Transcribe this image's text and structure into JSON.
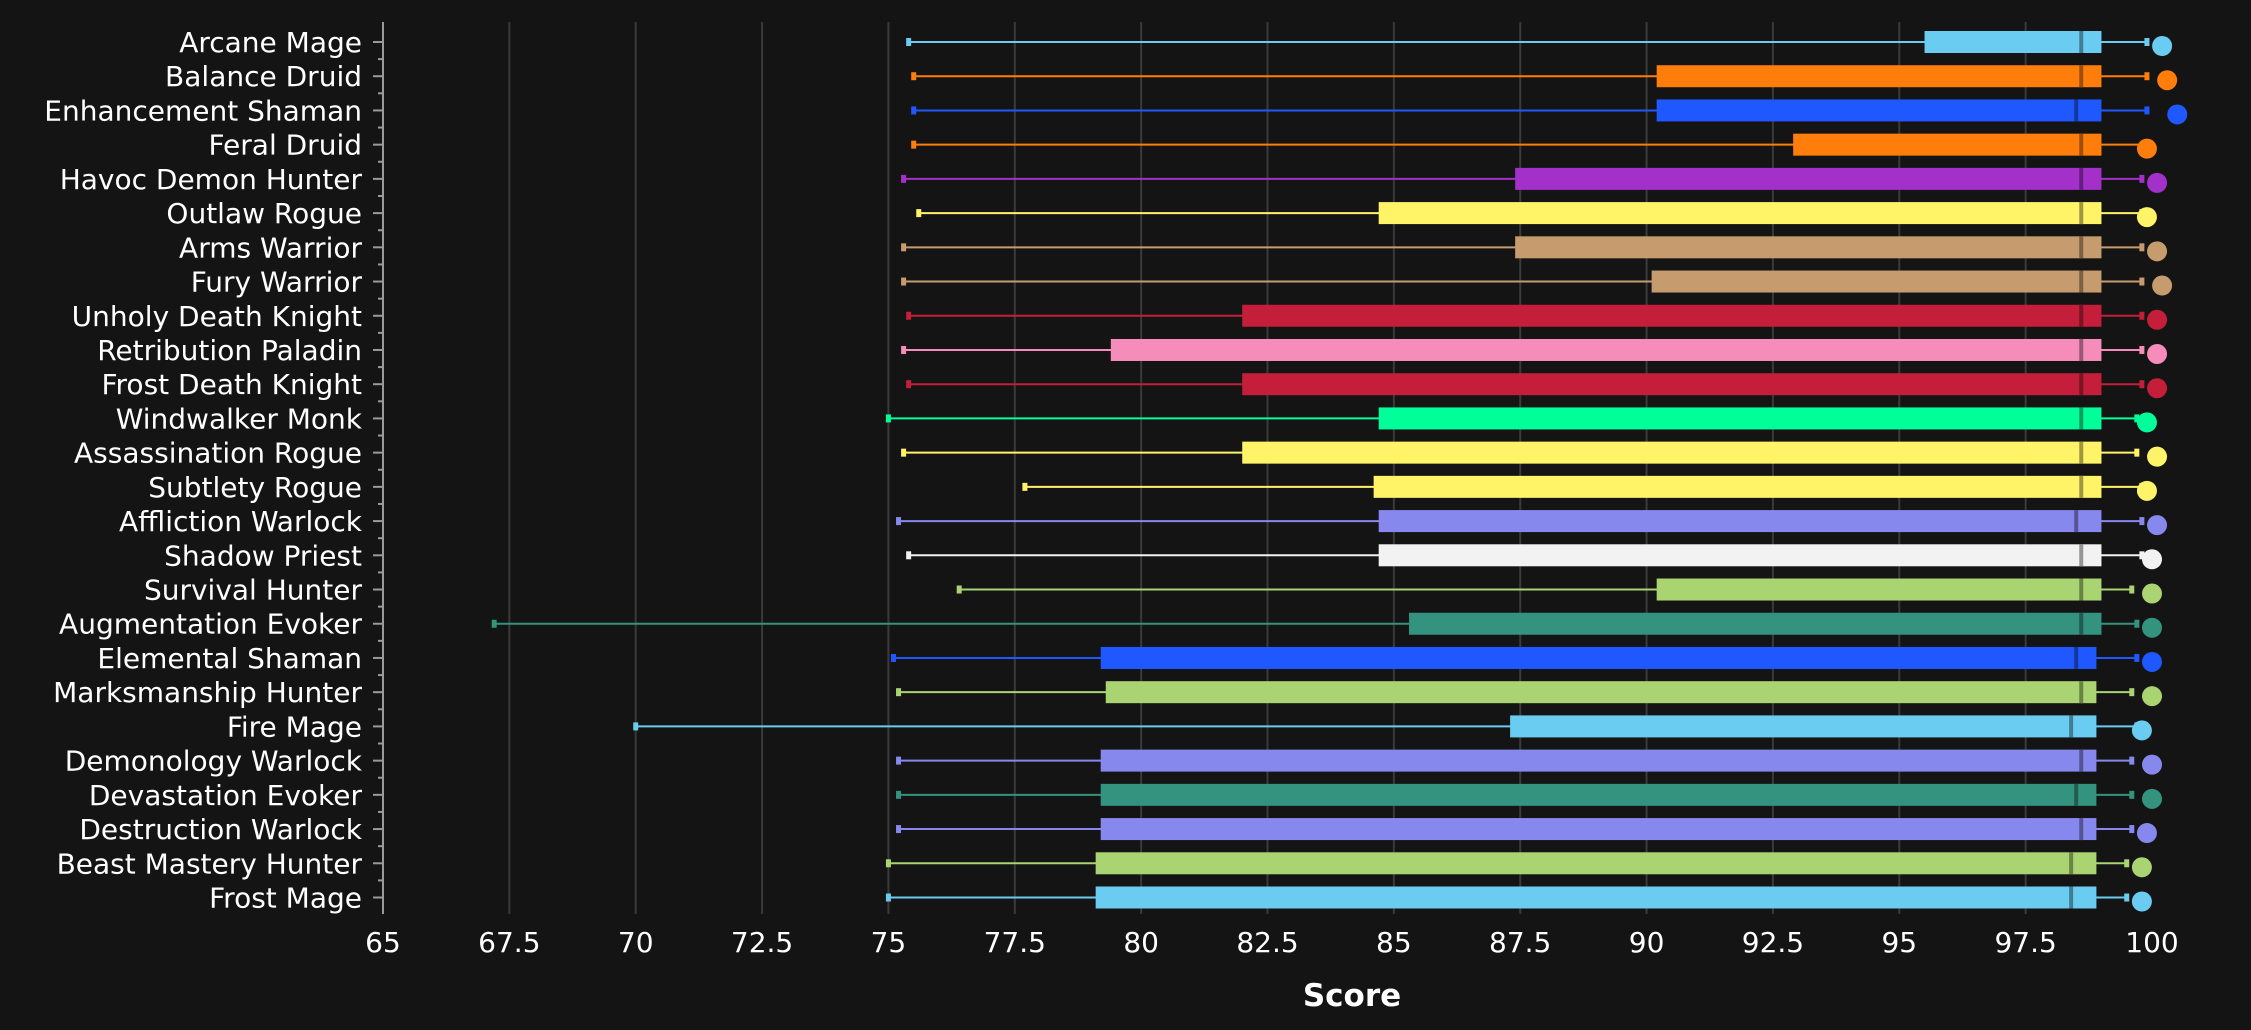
{
  "chart_data": {
    "type": "boxplot",
    "title": "",
    "xlabel": "Score",
    "ylabel": "",
    "xlim": [
      65,
      100
    ],
    "xticks": [
      "65",
      "67.5",
      "70",
      "72.5",
      "75",
      "77.5",
      "80",
      "82.5",
      "85",
      "87.5",
      "90",
      "92.5",
      "95",
      "97.5",
      "100"
    ],
    "grid": "vertical",
    "series": [
      {
        "name": "Arcane Mage",
        "color": "#69CCF0",
        "min": 75.4,
        "q1": 95.5,
        "median": 98.6,
        "q3": 99.0,
        "max": 99.9,
        "marker": 100.2
      },
      {
        "name": "Balance Druid",
        "color": "#FF7D0A",
        "min": 75.5,
        "q1": 90.2,
        "median": 98.6,
        "q3": 99.0,
        "max": 99.9,
        "marker": 100.3
      },
      {
        "name": "Enhancement Shaman",
        "color": "#1F58FF",
        "min": 75.5,
        "q1": 90.2,
        "median": 98.5,
        "q3": 99.0,
        "max": 99.9,
        "marker": 100.5
      },
      {
        "name": "Feral Druid",
        "color": "#FF7D0A",
        "min": 75.5,
        "q1": 92.9,
        "median": 98.6,
        "q3": 99.0,
        "max": 99.9,
        "marker": 99.9
      },
      {
        "name": "Havoc Demon Hunter",
        "color": "#A330C9",
        "min": 75.3,
        "q1": 87.4,
        "median": 98.6,
        "q3": 99.0,
        "max": 99.8,
        "marker": 100.1
      },
      {
        "name": "Outlaw Rogue",
        "color": "#FFF468",
        "min": 75.6,
        "q1": 84.7,
        "median": 98.6,
        "q3": 99.0,
        "max": 99.8,
        "marker": 99.9
      },
      {
        "name": "Arms Warrior",
        "color": "#C69B6D",
        "min": 75.3,
        "q1": 87.4,
        "median": 98.6,
        "q3": 99.0,
        "max": 99.8,
        "marker": 100.1
      },
      {
        "name": "Fury Warrior",
        "color": "#C69B6D",
        "min": 75.3,
        "q1": 90.1,
        "median": 98.6,
        "q3": 99.0,
        "max": 99.8,
        "marker": 100.2
      },
      {
        "name": "Unholy Death Knight",
        "color": "#C41E3A",
        "min": 75.4,
        "q1": 82.0,
        "median": 98.6,
        "q3": 99.0,
        "max": 99.8,
        "marker": 100.1
      },
      {
        "name": "Retribution Paladin",
        "color": "#F58CBA",
        "min": 75.3,
        "q1": 79.4,
        "median": 98.6,
        "q3": 99.0,
        "max": 99.8,
        "marker": 100.1
      },
      {
        "name": "Frost Death Knight",
        "color": "#C41E3A",
        "min": 75.4,
        "q1": 82.0,
        "median": 98.6,
        "q3": 99.0,
        "max": 99.8,
        "marker": 100.1
      },
      {
        "name": "Windwalker Monk",
        "color": "#00FF98",
        "min": 75.0,
        "q1": 84.7,
        "median": 98.6,
        "q3": 99.0,
        "max": 99.7,
        "marker": 99.9
      },
      {
        "name": "Assassination Rogue",
        "color": "#FFF468",
        "min": 75.3,
        "q1": 82.0,
        "median": 98.6,
        "q3": 99.0,
        "max": 99.7,
        "marker": 100.1
      },
      {
        "name": "Subtlety Rogue",
        "color": "#FFF468",
        "min": 77.7,
        "q1": 84.6,
        "median": 98.6,
        "q3": 99.0,
        "max": 99.8,
        "marker": 99.9
      },
      {
        "name": "Affliction Warlock",
        "color": "#8788EE",
        "min": 75.2,
        "q1": 84.7,
        "median": 98.5,
        "q3": 99.0,
        "max": 99.8,
        "marker": 100.1
      },
      {
        "name": "Shadow Priest",
        "color": "#F2F2F2",
        "min": 75.4,
        "q1": 84.7,
        "median": 98.6,
        "q3": 99.0,
        "max": 99.8,
        "marker": 100.0
      },
      {
        "name": "Survival Hunter",
        "color": "#AAD372",
        "min": 76.4,
        "q1": 90.2,
        "median": 98.6,
        "q3": 99.0,
        "max": 99.6,
        "marker": 100.0
      },
      {
        "name": "Augmentation Evoker",
        "color": "#33937F",
        "min": 67.2,
        "q1": 85.3,
        "median": 98.6,
        "q3": 99.0,
        "max": 99.7,
        "marker": 100.0
      },
      {
        "name": "Elemental Shaman",
        "color": "#1F58FF",
        "min": 75.1,
        "q1": 79.2,
        "median": 98.5,
        "q3": 98.9,
        "max": 99.7,
        "marker": 100.0
      },
      {
        "name": "Marksmanship Hunter",
        "color": "#AAD372",
        "min": 75.2,
        "q1": 79.3,
        "median": 98.6,
        "q3": 98.9,
        "max": 99.6,
        "marker": 100.0
      },
      {
        "name": "Fire Mage",
        "color": "#69CCF0",
        "min": 70.0,
        "q1": 87.3,
        "median": 98.4,
        "q3": 98.9,
        "max": 99.7,
        "marker": 99.8
      },
      {
        "name": "Demonology Warlock",
        "color": "#8788EE",
        "min": 75.2,
        "q1": 79.2,
        "median": 98.6,
        "q3": 98.9,
        "max": 99.6,
        "marker": 100.0
      },
      {
        "name": "Devastation Evoker",
        "color": "#33937F",
        "min": 75.2,
        "q1": 79.2,
        "median": 98.5,
        "q3": 98.9,
        "max": 99.6,
        "marker": 100.0
      },
      {
        "name": "Destruction Warlock",
        "color": "#8788EE",
        "min": 75.2,
        "q1": 79.2,
        "median": 98.6,
        "q3": 98.9,
        "max": 99.6,
        "marker": 99.9
      },
      {
        "name": "Beast Mastery Hunter",
        "color": "#AAD372",
        "min": 75.0,
        "q1": 79.1,
        "median": 98.4,
        "q3": 98.9,
        "max": 99.5,
        "marker": 99.8
      },
      {
        "name": "Frost Mage",
        "color": "#69CCF0",
        "min": 75.0,
        "q1": 79.1,
        "median": 98.4,
        "q3": 98.9,
        "max": 99.5,
        "marker": 99.8
      }
    ]
  }
}
